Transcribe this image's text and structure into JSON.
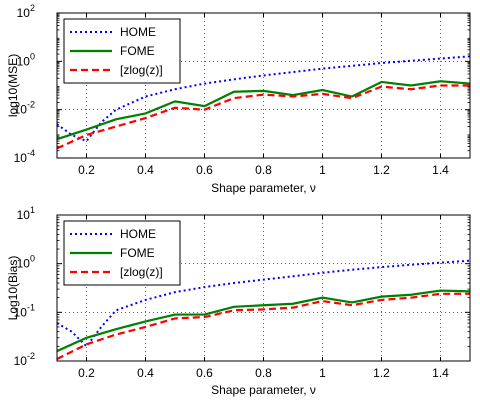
{
  "chart_data": [
    {
      "type": "line",
      "yscale": "log",
      "xlabel": "Shape parameter, ν",
      "ylabel": "log10(MSE)",
      "xlim": [
        0.1,
        1.5
      ],
      "ylim": [
        0.0001,
        100
      ],
      "xticks": [
        "0.2",
        "0.4",
        "0.6",
        "0.8",
        "1",
        "1.2",
        "1.4"
      ],
      "yticks": [
        {
          "base": "10",
          "exp": "-4"
        },
        {
          "base": "10",
          "exp": "-2"
        },
        {
          "base": "10",
          "exp": "0"
        },
        {
          "base": "10",
          "exp": "2"
        }
      ],
      "grid": true,
      "legend": "top-left",
      "x": [
        0.1,
        0.2,
        0.3,
        0.4,
        0.5,
        0.6,
        0.7,
        0.8,
        0.9,
        1.0,
        1.1,
        1.2,
        1.3,
        1.4,
        1.5
      ],
      "series": [
        {
          "name": "HOME",
          "style": "dotted",
          "color": "#0000ff",
          "x": [
            0.1,
            0.15,
            0.2,
            0.25,
            0.3,
            0.4,
            0.5,
            0.6,
            0.7,
            0.8,
            0.9,
            1.0,
            1.1,
            1.2,
            1.3,
            1.4,
            1.5
          ],
          "values": [
            0.0025,
            0.0009,
            0.0005,
            0.003,
            0.01,
            0.035,
            0.07,
            0.12,
            0.18,
            0.26,
            0.36,
            0.5,
            0.65,
            0.85,
            1.05,
            1.3,
            1.6
          ]
        },
        {
          "name": "FOME",
          "style": "solid",
          "color": "#008000",
          "values": [
            0.0006,
            0.0015,
            0.004,
            0.007,
            0.022,
            0.014,
            0.055,
            0.06,
            0.04,
            0.065,
            0.035,
            0.14,
            0.1,
            0.15,
            0.12
          ]
        },
        {
          "name": "[zlog(z)]",
          "style": "dashed",
          "color": "#ff0000",
          "values": [
            0.00025,
            0.0009,
            0.002,
            0.0045,
            0.012,
            0.01,
            0.03,
            0.042,
            0.035,
            0.045,
            0.03,
            0.09,
            0.07,
            0.1,
            0.1
          ]
        }
      ]
    },
    {
      "type": "line",
      "yscale": "log",
      "xlabel": "Shape parameter, ν",
      "ylabel": "Log10(Bias)",
      "xlim": [
        0.1,
        1.5
      ],
      "ylim": [
        0.01,
        10
      ],
      "xticks": [
        "0.2",
        "0.4",
        "0.6",
        "0.8",
        "1",
        "1.2",
        "1.4"
      ],
      "yticks": [
        {
          "base": "10",
          "exp": "-2"
        },
        {
          "base": "10",
          "exp": "-1"
        },
        {
          "base": "10",
          "exp": "0"
        },
        {
          "base": "10",
          "exp": "1"
        }
      ],
      "grid": true,
      "legend": "top-left",
      "x": [
        0.1,
        0.2,
        0.3,
        0.4,
        0.5,
        0.6,
        0.7,
        0.8,
        0.9,
        1.0,
        1.1,
        1.2,
        1.3,
        1.4,
        1.5
      ],
      "series": [
        {
          "name": "HOME",
          "style": "dotted",
          "color": "#0000ff",
          "x": [
            0.1,
            0.15,
            0.2,
            0.25,
            0.3,
            0.4,
            0.5,
            0.6,
            0.7,
            0.8,
            0.9,
            1.0,
            1.1,
            1.2,
            1.3,
            1.4,
            1.5
          ],
          "values": [
            0.06,
            0.04,
            0.02,
            0.05,
            0.11,
            0.18,
            0.26,
            0.33,
            0.4,
            0.47,
            0.55,
            0.65,
            0.75,
            0.85,
            0.95,
            1.05,
            1.15
          ]
        },
        {
          "name": "FOME",
          "style": "solid",
          "color": "#008000",
          "values": [
            0.016,
            0.03,
            0.045,
            0.065,
            0.09,
            0.09,
            0.13,
            0.14,
            0.15,
            0.2,
            0.16,
            0.21,
            0.23,
            0.28,
            0.27
          ]
        },
        {
          "name": "[zlog(z)]",
          "style": "dashed",
          "color": "#ff0000",
          "values": [
            0.011,
            0.022,
            0.035,
            0.05,
            0.075,
            0.08,
            0.11,
            0.115,
            0.125,
            0.17,
            0.14,
            0.18,
            0.2,
            0.24,
            0.24
          ]
        }
      ]
    }
  ]
}
